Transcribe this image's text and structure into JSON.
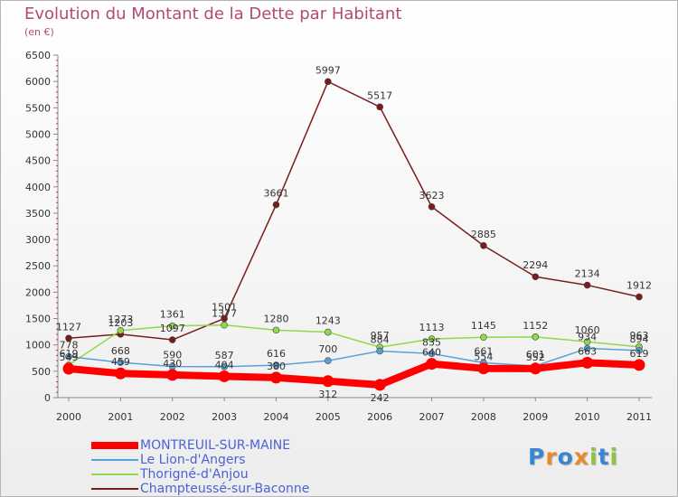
{
  "header": {
    "title": "Evolution du Montant de la Dette par Habitant",
    "subtitle": "(en €)"
  },
  "legend": {
    "items": [
      "MONTREUIL-SUR-MAINE",
      "Le Lion-d'Angers",
      "Thorigné-d'Anjou",
      "Champteussé-sur-Baconne"
    ]
  },
  "logo": {
    "text": "Proxiti",
    "letter_colors": [
      "#3a86d0",
      "#e8892a",
      "#3a86d0",
      "#e8892a",
      "#8cc63f",
      "#3a86d0",
      "#8cc63f"
    ]
  },
  "chart_data": {
    "type": "line",
    "title": "Evolution du Montant de la Dette par Habitant",
    "subtitle": "(en €)",
    "xlabel": "",
    "ylabel": "",
    "x": [
      "2000",
      "2001",
      "2002",
      "2003",
      "2004",
      "2005",
      "2006",
      "2007",
      "2008",
      "2009",
      "2010",
      "2011"
    ],
    "yticks": [
      0,
      500,
      1000,
      1500,
      2000,
      2500,
      3000,
      3500,
      4000,
      4500,
      5000,
      5500,
      6000,
      6500
    ],
    "ylim": [
      0,
      6500
    ],
    "grid": false,
    "legend_position": "bottom-left",
    "series": [
      {
        "name": "MONTREUIL-SUR-MAINE",
        "color": "#ff0000",
        "values": [
          549,
          459,
          430,
          404,
          380,
          312,
          242,
          640,
          554,
          552,
          663,
          619
        ],
        "labels": [
          "549",
          "459",
          "430",
          "404",
          "380",
          "312",
          "242",
          "640",
          "554",
          "552",
          "663",
          "619"
        ]
      },
      {
        "name": "Le Lion-d'Angers",
        "color": "#5aa0d8",
        "values": [
          778,
          668,
          590,
          587,
          616,
          700,
          884,
          835,
          661,
          601,
          934,
          894
        ],
        "labels": [
          "778",
          "668",
          "590",
          "587",
          "616",
          "700",
          "884",
          "835",
          "661",
          "601",
          "934",
          "894"
        ]
      },
      {
        "name": "Thorigné-d'Anjou",
        "color": "#8fd94a",
        "values": [
          619,
          1273,
          1361,
          1377,
          1280,
          1243,
          957,
          1113,
          1145,
          1152,
          1060,
          963
        ],
        "labels": [
          "619",
          "1273",
          "1361",
          "1377",
          "1280",
          "1243",
          "957",
          "1113",
          "1145",
          "1152",
          "1060",
          "963"
        ]
      },
      {
        "name": "Champteussé-sur-Baconne",
        "color": "#7a1c1c",
        "values": [
          1127,
          1203,
          1097,
          1501,
          3661,
          5997,
          5517,
          3623,
          2885,
          2294,
          2134,
          1912
        ],
        "labels": [
          "1127",
          "1203",
          "1097",
          "1501",
          "3661",
          "5997",
          "5517",
          "3623",
          "2885",
          "2294",
          "2134",
          "1912"
        ]
      }
    ]
  }
}
